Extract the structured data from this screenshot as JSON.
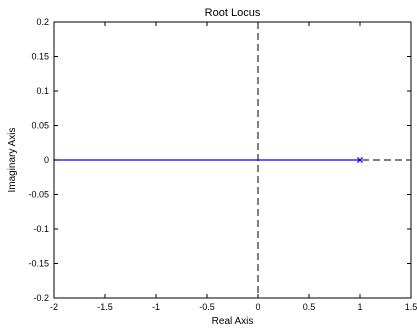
{
  "chart_data": {
    "type": "line",
    "title": "Root Locus",
    "xlabel": "Real Axis",
    "ylabel": "Imaginary Axis",
    "xlim": [
      -2,
      1.5
    ],
    "ylim": [
      -0.2,
      0.2
    ],
    "xticks": [
      -2,
      -1.5,
      -1,
      -0.5,
      0,
      0.5,
      1,
      1.5
    ],
    "xtick_labels": [
      "-2",
      "-1.5",
      "-1",
      "-0.5",
      "0",
      "0.5",
      "1",
      "1.5"
    ],
    "yticks": [
      -0.2,
      -0.15,
      -0.1,
      -0.05,
      0,
      0.05,
      0.1,
      0.15,
      0.2
    ],
    "ytick_labels": [
      "-0.2",
      "-0.15",
      "-0.1",
      "-0.05",
      "0",
      "0.05",
      "0.1",
      "0.15",
      "0.2"
    ],
    "grid": false,
    "series": [
      {
        "x": [
          -2,
          1
        ],
        "y": [
          0,
          0
        ],
        "color": "#0000ff",
        "style": "solid"
      }
    ],
    "poles": [
      {
        "x": 1,
        "y": 0,
        "marker": "x",
        "color": "#0000ff"
      }
    ],
    "reference_lines": [
      {
        "orientation": "vertical",
        "value": 0,
        "style": "dashed",
        "color": "#000000"
      },
      {
        "orientation": "horizontal",
        "value": 0,
        "style": "dashed",
        "color": "#000000"
      }
    ]
  }
}
